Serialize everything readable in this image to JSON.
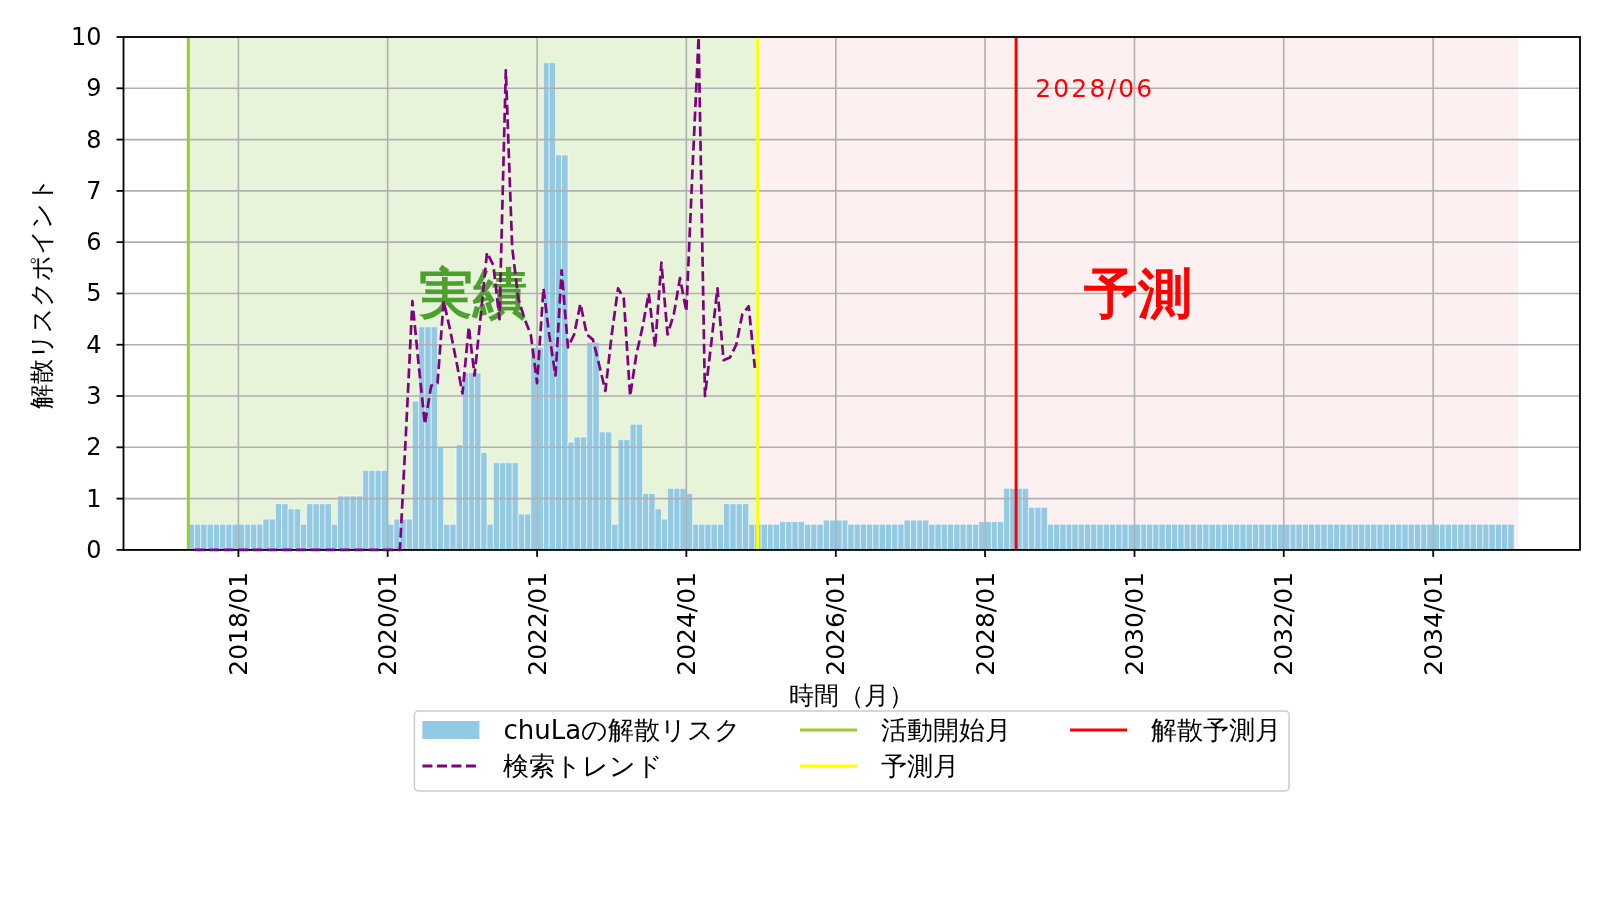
{
  "chart_data": {
    "type": "bar",
    "xlabel": "時間（月）",
    "ylabel": "解散リスクポイント",
    "x": [
      "2017-05",
      "2017-06",
      "2017-07",
      "2017-08",
      "2017-09",
      "2017-10",
      "2017-11",
      "2017-12",
      "2018-01",
      "2018-02",
      "2018-03",
      "2018-04",
      "2018-05",
      "2018-06",
      "2018-07",
      "2018-08",
      "2018-09",
      "2018-10",
      "2018-11",
      "2018-12",
      "2019-01",
      "2019-02",
      "2019-03",
      "2019-04",
      "2019-05",
      "2019-06",
      "2019-07",
      "2019-08",
      "2019-09",
      "2019-10",
      "2019-11",
      "2019-12",
      "2020-01",
      "2020-02",
      "2020-03",
      "2020-04",
      "2020-05",
      "2020-06",
      "2020-07",
      "2020-08",
      "2020-09",
      "2020-10",
      "2020-11",
      "2020-12",
      "2021-01",
      "2021-02",
      "2021-03",
      "2021-04",
      "2021-05",
      "2021-06",
      "2021-07",
      "2021-08",
      "2021-09",
      "2021-10",
      "2021-11",
      "2021-12",
      "2022-01",
      "2022-02",
      "2022-03",
      "2022-04",
      "2022-05",
      "2022-06",
      "2022-07",
      "2022-08",
      "2022-09",
      "2022-10",
      "2022-11",
      "2022-12",
      "2023-01",
      "2023-02",
      "2023-03",
      "2023-04",
      "2023-05",
      "2023-06",
      "2023-07",
      "2023-08",
      "2023-09",
      "2023-10",
      "2023-11",
      "2023-12",
      "2024-01",
      "2024-02",
      "2024-03",
      "2024-04",
      "2024-05",
      "2024-06",
      "2024-07",
      "2024-08",
      "2024-09",
      "2024-10",
      "2024-11",
      "2024-12",
      "2025-01",
      "2025-02",
      "2025-03",
      "2025-04",
      "2025-05",
      "2025-06",
      "2025-07",
      "2025-08",
      "2025-09",
      "2025-10",
      "2025-11",
      "2025-12",
      "2026-01",
      "2026-02",
      "2026-03",
      "2026-04",
      "2026-05",
      "2026-06",
      "2026-07",
      "2026-08",
      "2026-09",
      "2026-10",
      "2026-11",
      "2026-12",
      "2027-01",
      "2027-02",
      "2027-03",
      "2027-04",
      "2027-05",
      "2027-06",
      "2027-07",
      "2027-08",
      "2027-09",
      "2027-10",
      "2027-11",
      "2027-12",
      "2028-01",
      "2028-02",
      "2028-03",
      "2028-04",
      "2028-05",
      "2028-06",
      "2028-07",
      "2028-08",
      "2028-09",
      "2028-10",
      "2028-11",
      "2028-12",
      "2029-01",
      "2029-02",
      "2029-03",
      "2029-04",
      "2029-05",
      "2029-06",
      "2029-07",
      "2029-08",
      "2029-09",
      "2029-10",
      "2029-11",
      "2029-12",
      "2030-01",
      "2030-02",
      "2030-03",
      "2030-04",
      "2030-05",
      "2030-06",
      "2030-07",
      "2030-08",
      "2030-09",
      "2030-10",
      "2030-11",
      "2030-12",
      "2031-01",
      "2031-02",
      "2031-03",
      "2031-04",
      "2031-05",
      "2031-06",
      "2031-07",
      "2031-08",
      "2031-09",
      "2031-10",
      "2031-11",
      "2031-12",
      "2032-01",
      "2032-02",
      "2032-03",
      "2032-04",
      "2032-05",
      "2032-06",
      "2032-07",
      "2032-08",
      "2032-09",
      "2032-10",
      "2032-11",
      "2032-12",
      "2033-01",
      "2033-02",
      "2033-03",
      "2033-04",
      "2033-05",
      "2033-06",
      "2033-07",
      "2033-08",
      "2033-09",
      "2033-10",
      "2033-11",
      "2033-12",
      "2034-01",
      "2034-02",
      "2034-03",
      "2034-04",
      "2034-05",
      "2034-06",
      "2034-07",
      "2034-08",
      "2034-09",
      "2034-10",
      "2034-11",
      "2034-12",
      "2035-01"
    ],
    "series": [
      {
        "name": "chuLaの解散リスク",
        "color": "#93c9e2",
        "values": [
          0.5,
          0.5,
          0.5,
          0.5,
          0.5,
          0.5,
          0.5,
          0.5,
          0.5,
          0.5,
          0.5,
          0.5,
          0.6,
          0.6,
          0.9,
          0.9,
          0.8,
          0.8,
          0.5,
          0.9,
          0.9,
          0.9,
          0.9,
          0.5,
          1.05,
          1.05,
          1.05,
          1.05,
          1.55,
          1.55,
          1.55,
          1.55,
          0.5,
          0.6,
          0.6,
          0.6,
          2.9,
          4.35,
          4.35,
          4.35,
          2.0,
          0.5,
          0.5,
          2.05,
          3.45,
          3.45,
          3.45,
          1.9,
          0.5,
          1.7,
          1.7,
          1.7,
          1.7,
          0.7,
          0.7,
          3.95,
          3.95,
          9.5,
          9.5,
          7.7,
          7.7,
          2.1,
          2.2,
          2.2,
          4.05,
          4.05,
          2.3,
          2.3,
          0.5,
          2.15,
          2.15,
          2.45,
          2.45,
          1.1,
          1.1,
          0.8,
          0.6,
          1.2,
          1.2,
          1.2,
          1.1,
          0.5,
          0.5,
          0.5,
          0.5,
          0.5,
          0.9,
          0.9,
          0.9,
          0.9,
          0.5,
          0.5,
          0.5,
          0.5,
          0.5,
          0.55,
          0.55,
          0.55,
          0.55,
          0.5,
          0.5,
          0.5,
          0.58,
          0.58,
          0.58,
          0.58,
          0.5,
          0.5,
          0.5,
          0.5,
          0.5,
          0.5,
          0.5,
          0.5,
          0.5,
          0.58,
          0.58,
          0.58,
          0.58,
          0.5,
          0.5,
          0.5,
          0.5,
          0.5,
          0.5,
          0.5,
          0.5,
          0.55,
          0.55,
          0.55,
          0.55,
          1.2,
          1.2,
          1.2,
          1.2,
          0.83,
          0.83,
          0.83,
          0.5,
          0.5,
          0.5,
          0.5,
          0.5,
          0.5,
          0.5,
          0.5,
          0.5,
          0.5,
          0.5,
          0.5,
          0.5,
          0.5,
          0.5,
          0.5,
          0.5,
          0.5,
          0.5,
          0.5,
          0.5,
          0.5,
          0.5,
          0.5,
          0.5,
          0.5,
          0.5,
          0.5,
          0.5,
          0.5,
          0.5,
          0.5,
          0.5,
          0.5,
          0.5,
          0.5,
          0.5,
          0.5,
          0.5,
          0.5,
          0.5,
          0.5,
          0.5,
          0.5,
          0.5,
          0.5,
          0.5,
          0.5,
          0.5,
          0.5,
          0.5,
          0.5,
          0.5,
          0.5,
          0.5,
          0.5,
          0.5,
          0.5,
          0.5,
          0.5,
          0.5,
          0.5,
          0.5,
          0.5,
          0.5,
          0.5,
          0.5,
          0.5,
          0.5,
          0.5,
          0.5,
          0.5,
          0.5,
          0.5,
          0.5
        ]
      },
      {
        "name": "検索トレンド",
        "type": "line",
        "color": "#800080",
        "line_style": "dashed",
        "x": [
          "2017-06",
          "2017-07",
          "2017-08",
          "2017-09",
          "2017-10",
          "2017-11",
          "2017-12",
          "2018-01",
          "2018-02",
          "2018-03",
          "2018-04",
          "2018-05",
          "2018-06",
          "2018-07",
          "2018-08",
          "2018-09",
          "2018-10",
          "2018-11",
          "2018-12",
          "2019-01",
          "2019-02",
          "2019-03",
          "2019-04",
          "2019-05",
          "2019-06",
          "2019-07",
          "2019-08",
          "2019-09",
          "2019-10",
          "2019-11",
          "2019-12",
          "2020-01",
          "2020-02",
          "2020-03",
          "2020-04",
          "2020-05",
          "2020-06",
          "2020-07",
          "2020-08",
          "2020-09",
          "2020-10",
          "2020-11",
          "2020-12",
          "2021-01",
          "2021-02",
          "2021-03",
          "2021-04",
          "2021-05",
          "2021-06",
          "2021-07",
          "2021-08",
          "2021-09",
          "2021-10",
          "2021-11",
          "2021-12",
          "2022-01",
          "2022-02",
          "2022-03",
          "2022-04",
          "2022-05",
          "2022-06",
          "2022-07",
          "2022-08",
          "2022-09",
          "2022-10",
          "2022-11",
          "2022-12",
          "2023-01",
          "2023-02",
          "2023-03",
          "2023-04",
          "2023-05",
          "2023-06",
          "2023-07",
          "2023-08",
          "2023-09",
          "2023-10",
          "2023-11",
          "2023-12",
          "2024-01",
          "2024-02",
          "2024-03",
          "2024-04",
          "2024-05",
          "2024-06",
          "2024-07",
          "2024-08",
          "2024-09",
          "2024-10",
          "2024-11",
          "2024-12"
        ],
        "values": [
          0,
          0,
          0,
          0,
          0,
          0,
          0,
          0,
          0,
          0,
          0,
          0,
          0,
          0,
          0,
          0,
          0,
          0,
          0,
          0,
          0,
          0,
          0,
          0,
          0,
          0,
          0,
          0,
          0,
          0,
          0,
          0,
          0,
          0,
          2.4,
          4.85,
          3.6,
          2.45,
          3.2,
          3.25,
          4.85,
          4.3,
          3.7,
          3.05,
          4.35,
          3.4,
          4.6,
          5.8,
          5.55,
          4.5,
          9.35,
          5.9,
          4.9,
          4.5,
          4.2,
          3.25,
          5.1,
          4.2,
          3.4,
          5.45,
          3.95,
          4.2,
          4.8,
          4.2,
          4.1,
          3.6,
          3.1,
          4.2,
          5.1,
          4.9,
          3.0,
          3.8,
          4.35,
          5.0,
          3.95,
          5.6,
          4.2,
          4.6,
          5.3,
          4.65,
          7.5,
          10,
          3.0,
          4.0,
          5.1,
          3.7,
          3.75,
          4.0,
          4.6,
          4.75,
          3.55
        ]
      }
    ],
    "xlim": [
      "2016-06-18",
      "2035-12-20"
    ],
    "xticks": [
      {
        "value": "2018-01",
        "label": "2018/01"
      },
      {
        "value": "2020-01",
        "label": "2020/01"
      },
      {
        "value": "2022-01",
        "label": "2022/01"
      },
      {
        "value": "2024-01",
        "label": "2024/01"
      },
      {
        "value": "2026-01",
        "label": "2026/01"
      },
      {
        "value": "2028-01",
        "label": "2028/01"
      },
      {
        "value": "2030-01",
        "label": "2030/01"
      },
      {
        "value": "2032-01",
        "label": "2032/01"
      },
      {
        "value": "2034-01",
        "label": "2034/01"
      }
    ],
    "ylim": [
      0,
      10
    ],
    "yticks": [
      0,
      1,
      2,
      3,
      4,
      5,
      6,
      7,
      8,
      9,
      10
    ],
    "ref_lines": [
      {
        "axis": "x",
        "value": "2017-05",
        "label": "活動開始月",
        "color": "#9acd32"
      },
      {
        "axis": "x",
        "value": "2024-12-15",
        "label": "予測月",
        "color": "#ffff00"
      },
      {
        "axis": "x",
        "value": "2028-06",
        "label": "解散予測月",
        "color": "#ff0000"
      }
    ],
    "bands": [
      {
        "axis": "x",
        "from": "2017-05",
        "to": "2024-12-15",
        "label": "実績",
        "color": "#e8f4da"
      },
      {
        "axis": "x",
        "from": "2024-12-15",
        "to": "2035-02-20",
        "label": "予測",
        "color": "#fdf0f0"
      }
    ],
    "annotations": [
      {
        "text": "2028/06",
        "x": "2028-06",
        "y": 9
      }
    ],
    "grid": true,
    "legend": "bottom"
  }
}
